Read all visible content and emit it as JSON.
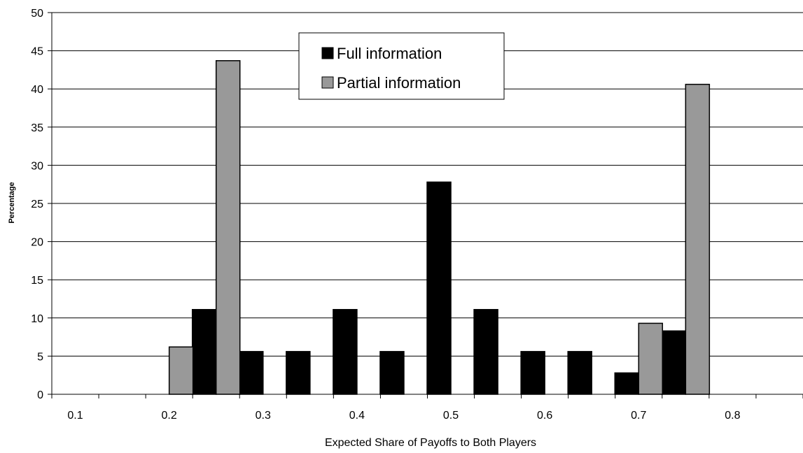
{
  "chart_data": {
    "type": "bar",
    "categories": [
      "0.1",
      "",
      "0.2",
      "",
      "0.3",
      "",
      "0.4",
      "",
      "0.5",
      "",
      "0.6",
      "",
      "0.7",
      "",
      "0.8",
      ""
    ],
    "series": [
      {
        "name": "Full information",
        "color": "#000000",
        "values": [
          0,
          0,
          0,
          11.1,
          5.6,
          5.6,
          11.1,
          5.6,
          27.8,
          11.1,
          5.6,
          5.6,
          2.8,
          8.3,
          0,
          0
        ]
      },
      {
        "name": "Partial information",
        "color": "#999999",
        "values": [
          0,
          0,
          6.2,
          43.7,
          0,
          0,
          0,
          0,
          0,
          0,
          0,
          0,
          9.3,
          40.6,
          0,
          0
        ]
      }
    ],
    "xlabel": "Expected Share of Payoffs to Both Players",
    "ylabel": "Percentage",
    "ylim": [
      0,
      50
    ],
    "yticks": [
      "0",
      "5",
      "10",
      "15",
      "20",
      "25",
      "30",
      "35",
      "40",
      "45",
      "50"
    ],
    "grid": true,
    "legend": "top-center"
  }
}
